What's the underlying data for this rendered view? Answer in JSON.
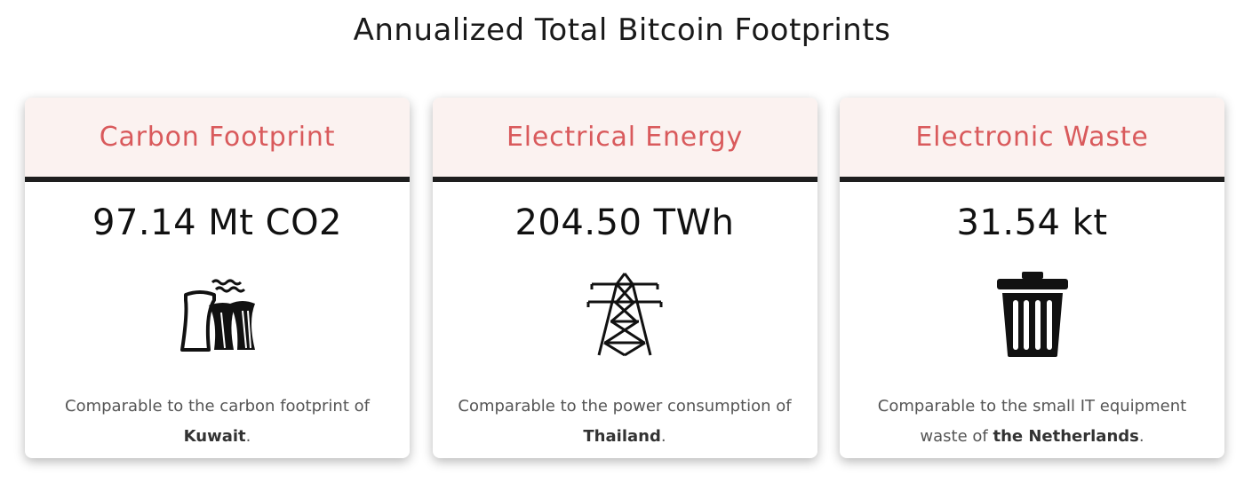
{
  "title": "Annualized Total Bitcoin Footprints",
  "cards": [
    {
      "title": "Carbon Footprint",
      "value": "97.14 Mt CO2",
      "icon": "power-plant-icon",
      "desc_prefix": "Comparable to the carbon footprint of",
      "desc_highlight": "Kuwait",
      "desc_suffix": "."
    },
    {
      "title": "Electrical Energy",
      "value": "204.50 TWh",
      "icon": "transmission-tower-icon",
      "desc_prefix": "Comparable to the power consumption of",
      "desc_highlight": "Thailand",
      "desc_suffix": "."
    },
    {
      "title": "Electronic Waste",
      "value": "31.54 kt",
      "icon": "trash-can-icon",
      "desc_prefix": "Comparable to the small IT equipment waste of",
      "desc_highlight": "the Netherlands",
      "desc_suffix": "."
    }
  ],
  "colors": {
    "title_accent": "#d95a5c",
    "header_bg": "#fbf2f0",
    "header_border": "#1e1e1e"
  }
}
